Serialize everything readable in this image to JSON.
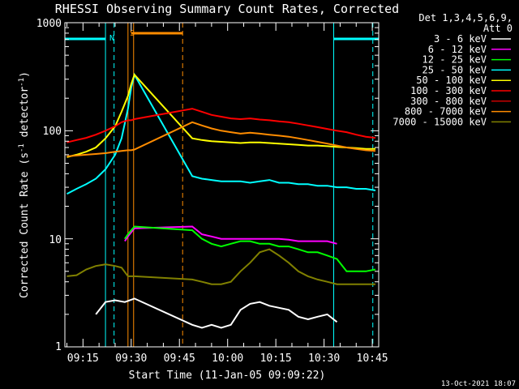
{
  "chart_data": {
    "type": "line",
    "title": "RHESSI Observing Summary Count Rates, Corrected",
    "xlabel": "Start Time (11-Jan-05 09:09:22)",
    "ylabel": "Corrected Count Rate (s⁻¹ detector⁻¹)",
    "ylabel_base": "Corrected Count Rate (s",
    "ylabel_mid": " detector",
    "ylabel_end": ")",
    "ylabel_sup": "-1",
    "y_scale": "log",
    "ylim": [
      1,
      1000
    ],
    "xlim": [
      "09:09:22",
      "10:47:00"
    ],
    "xticks": [
      "09:15",
      "09:30",
      "09:45",
      "10:00",
      "10:15",
      "10:30",
      "10:45"
    ],
    "yticks": [
      "1",
      "10",
      "100",
      "1000"
    ],
    "timestamp": "13-Oct-2021 18:07",
    "detectors_line1": "Det 1,3,4,5,6,9,",
    "detectors_line2": "Att 0",
    "legend_position": "right",
    "attenuator_marker": "S",
    "saa_marker": "N",
    "flags": {
      "night_bars": [
        [
          "09:09:22",
          "09:22:00"
        ],
        [
          "10:33:00",
          "10:47:00"
        ]
      ],
      "saa_bar": [
        [
          "09:30:00",
          "09:46:00"
        ]
      ],
      "night_lines": [
        "09:09:22",
        "09:22:00",
        "09:24:40",
        "10:33:00",
        "10:45:10"
      ],
      "saa_lines": [
        "09:29:00",
        "09:30:45",
        "09:46:00"
      ],
      "gap": [
        "09:31:00",
        "09:48:30"
      ]
    },
    "series": [
      {
        "name": "3 - 6 keV",
        "color": "#ffffff",
        "x": [
          "09:19",
          "09:22",
          "09:25",
          "09:28",
          "09:31",
          "09:49",
          "09:52",
          "09:55",
          "09:58",
          "10:01",
          "10:04",
          "10:07",
          "10:10",
          "10:13",
          "10:16",
          "10:19",
          "10:22",
          "10:25",
          "10:28",
          "10:31",
          "10:34",
          "10:37",
          "10:40",
          "10:43",
          "10:46"
        ],
        "y": [
          2.0,
          2.6,
          2.7,
          2.6,
          2.8,
          1.6,
          1.5,
          1.6,
          1.5,
          1.6,
          2.2,
          2.5,
          2.6,
          2.4,
          2.3,
          2.2,
          1.9,
          1.8,
          1.9,
          2.0,
          1.7,
          null,
          null,
          null,
          null
        ]
      },
      {
        "name": "6 - 12 keV",
        "color": "#ff00ff",
        "x": [
          "09:28",
          "09:29",
          "09:30",
          "09:31",
          "09:49",
          "09:52",
          "09:55",
          "09:58",
          "10:01",
          "10:04",
          "10:07",
          "10:10",
          "10:13",
          "10:16",
          "10:19",
          "10:22",
          "10:25",
          "10:28",
          "10:31",
          "10:34",
          "10:37",
          "10:40",
          "10:43",
          "10:46"
        ],
        "y": [
          9.5,
          10.5,
          11.5,
          12.5,
          13.0,
          11.0,
          10.5,
          10.0,
          10.0,
          10.0,
          10.0,
          10.0,
          10.0,
          10.0,
          9.8,
          9.5,
          9.5,
          9.5,
          9.5,
          9.0,
          null,
          null,
          null,
          null
        ]
      },
      {
        "name": "12 - 25 keV",
        "color": "#00ff00",
        "x": [
          "09:28",
          "09:29",
          "09:30",
          "09:31",
          "09:49",
          "09:52",
          "09:55",
          "09:58",
          "10:01",
          "10:04",
          "10:07",
          "10:10",
          "10:13",
          "10:16",
          "10:19",
          "10:22",
          "10:25",
          "10:28",
          "10:31",
          "10:34",
          "10:37",
          "10:40",
          "10:43",
          "10:46"
        ],
        "y": [
          10.0,
          11.0,
          12.0,
          13.0,
          12.0,
          10.0,
          9.0,
          8.5,
          9.0,
          9.5,
          9.5,
          9.0,
          9.0,
          8.5,
          8.5,
          8.0,
          7.5,
          7.5,
          7.0,
          6.5,
          5.0,
          5.0,
          5.0,
          5.2
        ]
      },
      {
        "name": "25 - 50 keV",
        "color": "#00ffff",
        "x": [
          "09:10",
          "09:13",
          "09:16",
          "09:19",
          "09:22",
          "09:25",
          "09:27",
          "09:29",
          "09:30",
          "09:31",
          "09:49",
          "09:52",
          "09:55",
          "09:58",
          "10:01",
          "10:04",
          "10:07",
          "10:10",
          "10:13",
          "10:16",
          "10:19",
          "10:22",
          "10:25",
          "10:28",
          "10:31",
          "10:34",
          "10:37",
          "10:40",
          "10:43",
          "10:46"
        ],
        "y": [
          26,
          29,
          32,
          36,
          44,
          60,
          85,
          160,
          250,
          330,
          38,
          36,
          35,
          34,
          34,
          34,
          33,
          34,
          35,
          33,
          33,
          32,
          32,
          31,
          31,
          30,
          30,
          29,
          29,
          28
        ]
      },
      {
        "name": "50 - 100 keV",
        "color": "#ffff00",
        "x": [
          "09:10",
          "09:13",
          "09:16",
          "09:19",
          "09:22",
          "09:25",
          "09:27",
          "09:29",
          "09:30",
          "09:31",
          "09:49",
          "09:52",
          "09:55",
          "09:58",
          "10:01",
          "10:04",
          "10:07",
          "10:10",
          "10:13",
          "10:16",
          "10:19",
          "10:22",
          "10:25",
          "10:28",
          "10:31",
          "10:34",
          "10:37",
          "10:40",
          "10:43",
          "10:46"
        ],
        "y": [
          57,
          60,
          64,
          70,
          85,
          110,
          150,
          210,
          270,
          330,
          85,
          82,
          80,
          79,
          78,
          77,
          78,
          78,
          77,
          76,
          75,
          74,
          73,
          73,
          72,
          71,
          70,
          69,
          68,
          68
        ]
      },
      {
        "name": "100 - 300 keV",
        "color": "#ff0000",
        "x": [
          "09:10",
          "09:13",
          "09:16",
          "09:19",
          "09:22",
          "09:25",
          "09:27",
          "09:29",
          "09:30",
          "09:31",
          "09:49",
          "09:52",
          "09:55",
          "09:58",
          "10:01",
          "10:04",
          "10:07",
          "10:10",
          "10:13",
          "10:16",
          "10:19",
          "10:22",
          "10:25",
          "10:28",
          "10:31",
          "10:34",
          "10:37",
          "10:40",
          "10:43",
          "10:46"
        ],
        "y": [
          78,
          82,
          86,
          92,
          100,
          110,
          120,
          125,
          125,
          128,
          160,
          150,
          140,
          135,
          130,
          128,
          130,
          127,
          125,
          122,
          120,
          116,
          112,
          108,
          104,
          100,
          97,
          92,
          88,
          86
        ]
      },
      {
        "name": "300 - 800 keV",
        "color": "#c80000",
        "x": [],
        "y": []
      },
      {
        "name": "800 - 7000 keV",
        "color": "#ff8c00",
        "x": [
          "09:10",
          "09:13",
          "09:16",
          "09:19",
          "09:22",
          "09:25",
          "09:27",
          "09:29",
          "09:30",
          "09:31",
          "09:49",
          "09:52",
          "09:55",
          "09:58",
          "10:01",
          "10:04",
          "10:07",
          "10:10",
          "10:13",
          "10:16",
          "10:19",
          "10:22",
          "10:25",
          "10:28",
          "10:31",
          "10:34",
          "10:37",
          "10:40",
          "10:43",
          "10:46"
        ],
        "y": [
          58,
          59,
          60,
          61,
          62,
          64,
          65,
          66,
          66,
          67,
          120,
          112,
          105,
          100,
          97,
          94,
          96,
          94,
          92,
          90,
          88,
          85,
          82,
          79,
          76,
          73,
          70,
          68,
          66,
          65
        ]
      },
      {
        "name": "7000 - 15000 keV",
        "color": "#808000",
        "x": [
          "09:10",
          "09:13",
          "09:16",
          "09:19",
          "09:22",
          "09:25",
          "09:27",
          "09:29",
          "09:30",
          "09:31",
          "09:49",
          "09:52",
          "09:55",
          "09:58",
          "10:01",
          "10:04",
          "10:07",
          "10:10",
          "10:13",
          "10:16",
          "10:19",
          "10:22",
          "10:25",
          "10:28",
          "10:31",
          "10:34",
          "10:37",
          "10:40",
          "10:43",
          "10:46"
        ],
        "y": [
          4.5,
          4.6,
          5.2,
          5.6,
          5.8,
          5.6,
          5.4,
          4.5,
          4.5,
          4.5,
          4.2,
          4.0,
          3.8,
          3.8,
          4.0,
          5.0,
          6.0,
          7.5,
          8.0,
          7.0,
          6.0,
          5.0,
          4.5,
          4.2,
          4.0,
          3.8,
          3.8,
          3.8,
          3.8,
          3.8
        ]
      }
    ]
  }
}
